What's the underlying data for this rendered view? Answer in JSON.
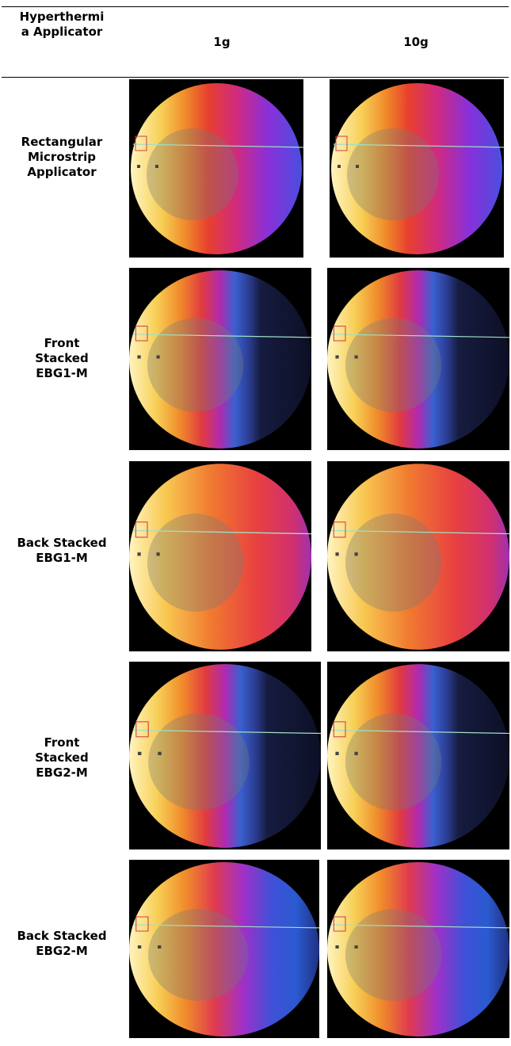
{
  "header": {
    "columns": [
      "Hyperthermia Applicator",
      "1g",
      "10g"
    ]
  },
  "rows": [
    {
      "label": "Rectangular Microstrip Applicator"
    },
    {
      "label": "Front Stacked EBG1-M"
    },
    {
      "label": "Back Stacked EBG1-M"
    },
    {
      "label": "Front Stacked EBG2-M"
    },
    {
      "label": "Back Stacked EBG2-M"
    }
  ]
}
